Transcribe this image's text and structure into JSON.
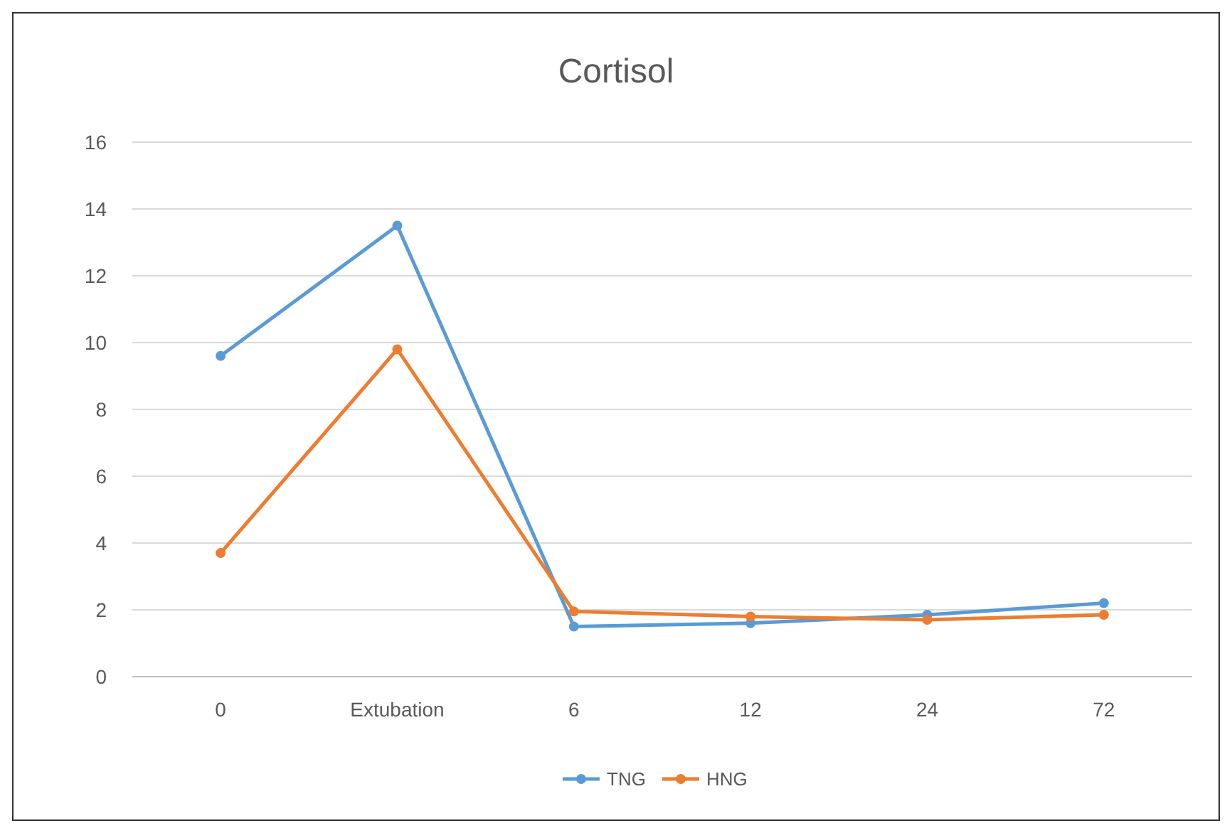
{
  "chart_data": {
    "type": "line",
    "title": "Cortisol",
    "categories": [
      "0",
      "Extubation",
      "6",
      "12",
      "24",
      "72"
    ],
    "series": [
      {
        "name": "TNG",
        "color": "#5b9bd5",
        "values": [
          9.6,
          13.5,
          1.5,
          1.6,
          1.85,
          2.2
        ]
      },
      {
        "name": "HNG",
        "color": "#ed7d31",
        "values": [
          3.7,
          9.8,
          1.95,
          1.8,
          1.7,
          1.85
        ]
      }
    ],
    "ylim": [
      0,
      16
    ],
    "yticks": [
      0,
      2,
      4,
      6,
      8,
      10,
      12,
      14,
      16
    ],
    "grid": "y",
    "legend": "bottom",
    "marker": "circle"
  }
}
